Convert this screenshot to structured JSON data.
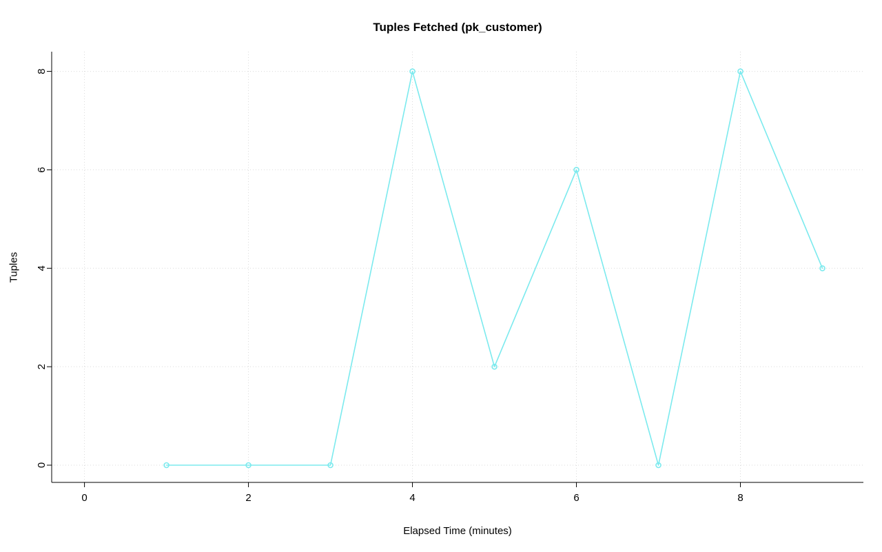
{
  "chart_data": {
    "type": "line",
    "title": "Tuples Fetched (pk_customer)",
    "xlabel": "Elapsed Time (minutes)",
    "ylabel": "Tuples",
    "x": [
      1,
      2,
      3,
      4,
      5,
      6,
      7,
      8,
      9
    ],
    "y": [
      0,
      0,
      0,
      8,
      2,
      6,
      0,
      8,
      4
    ],
    "xticks": [
      0,
      2,
      4,
      6,
      8
    ],
    "yticks": [
      0,
      2,
      4,
      6,
      8
    ],
    "xlim": [
      -0.4,
      9.5
    ],
    "ylim": [
      -0.35,
      8.4
    ],
    "grid": "on",
    "legend": "none",
    "marker": "open-circle",
    "colors": {
      "line": "#7BEAEE",
      "grid": "#D9D9D9",
      "axis": "#000000",
      "background": "#FFFFFF"
    }
  }
}
